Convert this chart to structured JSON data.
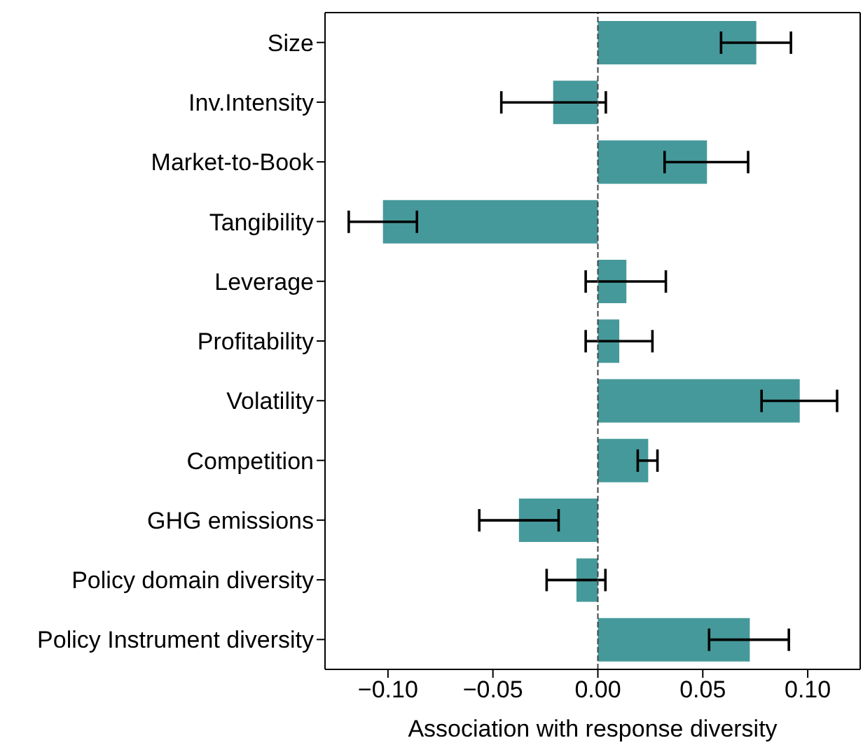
{
  "chart_data": {
    "type": "bar",
    "orientation": "horizontal",
    "xlabel": "Association with response diversity",
    "categories": [
      "Size",
      "Inv.Intensity",
      "Market-to-Book",
      "Tangibility",
      "Leverage",
      "Profitability",
      "Volatility",
      "Competition",
      "GHG emissions",
      "Policy domain diversity",
      "Policy Instrument diversity"
    ],
    "values": [
      0.0755,
      -0.0213,
      0.052,
      -0.1024,
      0.0136,
      0.0102,
      0.0962,
      0.024,
      -0.0376,
      -0.0102,
      0.0724
    ],
    "errors": [
      [
        0.0587,
        0.092
      ],
      [
        -0.046,
        0.0038
      ],
      [
        0.0318,
        0.0716
      ],
      [
        -0.1187,
        -0.0862
      ],
      [
        -0.0058,
        0.0324
      ],
      [
        -0.0058,
        0.026
      ],
      [
        0.078,
        0.114
      ],
      [
        0.019,
        0.0284
      ],
      [
        -0.0565,
        -0.0187
      ],
      [
        -0.0244,
        0.0036
      ],
      [
        0.053,
        0.091
      ]
    ],
    "color": "#46999a",
    "xlim": [
      -0.13,
      0.125
    ],
    "xticks": [
      {
        "value": -0.1,
        "label": "−0.10"
      },
      {
        "value": -0.05,
        "label": "−0.05"
      },
      {
        "value": 0,
        "label": "0.00"
      },
      {
        "value": 0.05,
        "label": "0.05"
      },
      {
        "value": 0.1,
        "label": "0.10"
      }
    ],
    "ref_lines": [
      {
        "axis": "x",
        "value": 0,
        "color": "#444444",
        "line_style": "dashed"
      }
    ],
    "grid": false
  }
}
